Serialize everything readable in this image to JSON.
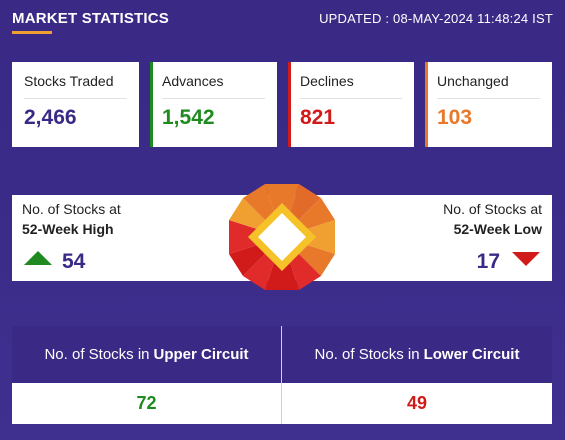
{
  "header": {
    "title": "MARKET STATISTICS",
    "updated": "UPDATED : 08-MAY-2024 11:48:24 IST"
  },
  "stats": [
    {
      "label": "Stocks Traded",
      "value": "2,466",
      "color": "#3a2a86"
    },
    {
      "label": "Advances",
      "value": "1,542",
      "color": "#1f8a1f"
    },
    {
      "label": "Declines",
      "value": "821",
      "color": "#d11a1a"
    },
    {
      "label": "Unchanged",
      "value": "103",
      "color": "#e8782a"
    }
  ],
  "week52": {
    "high": {
      "line1": "No. of Stocks at",
      "line2": "52-Week High",
      "count": "54"
    },
    "low": {
      "line1": "No. of Stocks at",
      "line2": "52-Week Low",
      "count": "17"
    }
  },
  "circuit": {
    "upper": {
      "prefix": "No. of Stocks in",
      "label": "Upper Circuit",
      "value": "72",
      "color": "#1f8a1f"
    },
    "lower": {
      "prefix": "No. of Stocks in",
      "label": "Lower Circuit",
      "value": "49",
      "color": "#d11a1a"
    }
  }
}
